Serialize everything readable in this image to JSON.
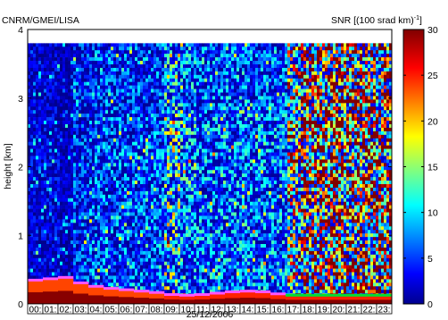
{
  "chart_data": {
    "type": "heatmap",
    "title_left": "CNRM/GMEI/LISA",
    "colorbar_label": "SNR [(100 srad km)",
    "colorbar_label_sup": "-1",
    "colorbar_label_end": "]",
    "xlabel": "25/12/2006",
    "ylabel": "height [km]",
    "x_ticks": [
      "00:",
      "01:",
      "02:",
      "03:",
      "04:",
      "05:",
      "06:",
      "07:",
      "08:",
      "09:",
      "10:",
      "11:",
      "12:",
      "13:",
      "14:",
      "15:",
      "16:",
      "17:",
      "18:",
      "19:",
      "20:",
      "21:",
      "22:",
      "23:"
    ],
    "y_ticks": [
      "0",
      "1",
      "2",
      "3",
      "4"
    ],
    "ylim": [
      0,
      4
    ],
    "data_top_km": 3.8,
    "colorbar_ticks": [
      "0",
      "5",
      "10",
      "15",
      "20",
      "25",
      "30"
    ],
    "clim": [
      0,
      30
    ],
    "colormap": "jet",
    "colors": {
      "background": "#00008f",
      "cloud_top": "#ff55ff",
      "cloud_base": "#00dd33"
    },
    "hourly_mean_snr": [
      3,
      3,
      2,
      5,
      6,
      6,
      6,
      6,
      6,
      11,
      8,
      7,
      7,
      7,
      7,
      7,
      7,
      16,
      22,
      22,
      22,
      22,
      22,
      22
    ],
    "boundary_layer_top_km": [
      0.34,
      0.36,
      0.38,
      0.3,
      0.25,
      0.22,
      0.2,
      0.18,
      0.16,
      0.13,
      0.12,
      0.13,
      0.15,
      0.17,
      0.18,
      0.17,
      0.14,
      0.12,
      0.12,
      0.12,
      0.12,
      0.12,
      0.12,
      0.12
    ]
  }
}
